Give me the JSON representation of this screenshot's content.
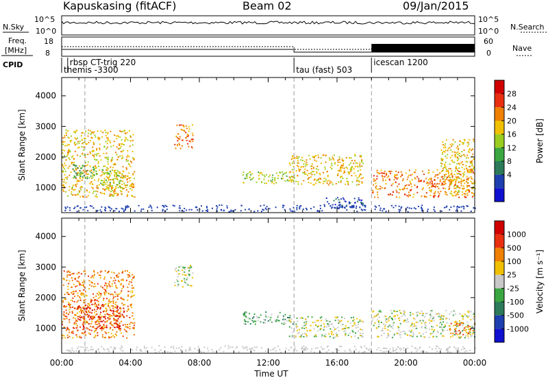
{
  "header": {
    "station": "Kapuskasing (fitACF)",
    "beam": "Beam 02",
    "date": "09/Jan/2015"
  },
  "summary": {
    "nsky_label": "N.Sky",
    "nsky_ticks": [
      "10^5",
      "10^0"
    ],
    "nsearch_label": "N.Search",
    "nsearch_ticks": [
      "10^5",
      "10^0"
    ],
    "freq_label_line1": "Freq.",
    "freq_label_line2": "[MHz]",
    "freq_ticks": [
      "18",
      "8"
    ],
    "nave_label": "Nave",
    "nave_ticks": [
      "60",
      "0"
    ],
    "cpid_label": "CPID"
  },
  "cpid_segments": [
    {
      "start_hour": 0.0,
      "upper": "",
      "lower": "themis -3300"
    },
    {
      "start_hour": 0.35,
      "upper": "rbsp CT-trig 220",
      "lower": ""
    },
    {
      "start_hour": 13.5,
      "upper": "",
      "lower": "tau (fast) 503"
    },
    {
      "start_hour": 18.0,
      "upper": "icescan 1200",
      "lower": ""
    }
  ],
  "chart_data": [
    {
      "type": "heatmap",
      "name": "power",
      "ylabel": "Slant Range [km]",
      "ylim": [
        180,
        4600
      ],
      "yticks": [
        1000,
        2000,
        3000,
        4000
      ],
      "xlim": [
        0,
        24
      ],
      "colorbar": {
        "label": "Power [dB]",
        "ticks": [
          "28",
          "24",
          "20",
          "16",
          "12",
          "8",
          "4"
        ],
        "colors": [
          "#1010d0",
          "#1e3fb0",
          "#2c7a5a",
          "#3aa640",
          "#9acd20",
          "#f0c000",
          "#f08000",
          "#e83010",
          "#d00000"
        ]
      },
      "regions": [
        {
          "t0": 0.0,
          "t1": 4.2,
          "r0": 700,
          "r1": 2900,
          "level": 5
        },
        {
          "t0": 0.6,
          "t1": 2.0,
          "r0": 1300,
          "r1": 1800,
          "level": 3
        },
        {
          "t0": 2.2,
          "t1": 3.6,
          "r0": 1000,
          "r1": 1600,
          "level": 4
        },
        {
          "t0": 6.5,
          "t1": 7.6,
          "r0": 2300,
          "r1": 3100,
          "level": 6
        },
        {
          "t0": 10.5,
          "t1": 13.5,
          "r0": 1150,
          "r1": 1550,
          "level": 4
        },
        {
          "t0": 13.2,
          "t1": 17.5,
          "r0": 1100,
          "r1": 2100,
          "level": 5
        },
        {
          "t0": 15.2,
          "t1": 17.5,
          "r0": 350,
          "r1": 700,
          "level": 1
        },
        {
          "t0": 18.0,
          "t1": 24.0,
          "r0": 700,
          "r1": 1600,
          "level": 6
        },
        {
          "t0": 22.0,
          "t1": 24.0,
          "r0": 800,
          "r1": 2600,
          "level": 5
        }
      ]
    },
    {
      "type": "heatmap",
      "name": "velocity",
      "ylabel": "Slant Range [km]",
      "ylim": [
        180,
        4600
      ],
      "yticks": [
        1000,
        2000,
        3000,
        4000
      ],
      "xlim": [
        0,
        24
      ],
      "xticks": [
        "00:00",
        "04:00",
        "08:00",
        "12:00",
        "16:00",
        "20:00",
        "00:00"
      ],
      "xlabel": "Time UT",
      "colorbar": {
        "label": "Velocity [m s⁻¹]",
        "ticks": [
          "1000",
          "500",
          "100",
          "25",
          "-25",
          "-100",
          "-500",
          "-1000"
        ],
        "colors": [
          "#1010d0",
          "#1e3fb0",
          "#2c7a5a",
          "#3aa640",
          "#c8c8c8",
          "#f0c000",
          "#f08000",
          "#e83010",
          "#d00000"
        ]
      },
      "regions": [
        {
          "t0": 0.0,
          "t1": 4.2,
          "r0": 700,
          "r1": 2900,
          "level": 6
        },
        {
          "t0": 0.6,
          "t1": 3.6,
          "r0": 1000,
          "r1": 1800,
          "level": 7
        },
        {
          "t0": 6.5,
          "t1": 7.6,
          "r0": 2300,
          "r1": 3100,
          "level": 4
        },
        {
          "t0": 10.5,
          "t1": 13.5,
          "r0": 1150,
          "r1": 1550,
          "level": 3
        },
        {
          "t0": 13.2,
          "t1": 17.5,
          "r0": 700,
          "r1": 1400,
          "level": 4
        },
        {
          "t0": 18.0,
          "t1": 24.0,
          "r0": 700,
          "r1": 1600,
          "level": 4
        },
        {
          "t0": 22.5,
          "t1": 24.0,
          "r0": 800,
          "r1": 1200,
          "level": 6
        }
      ]
    }
  ]
}
